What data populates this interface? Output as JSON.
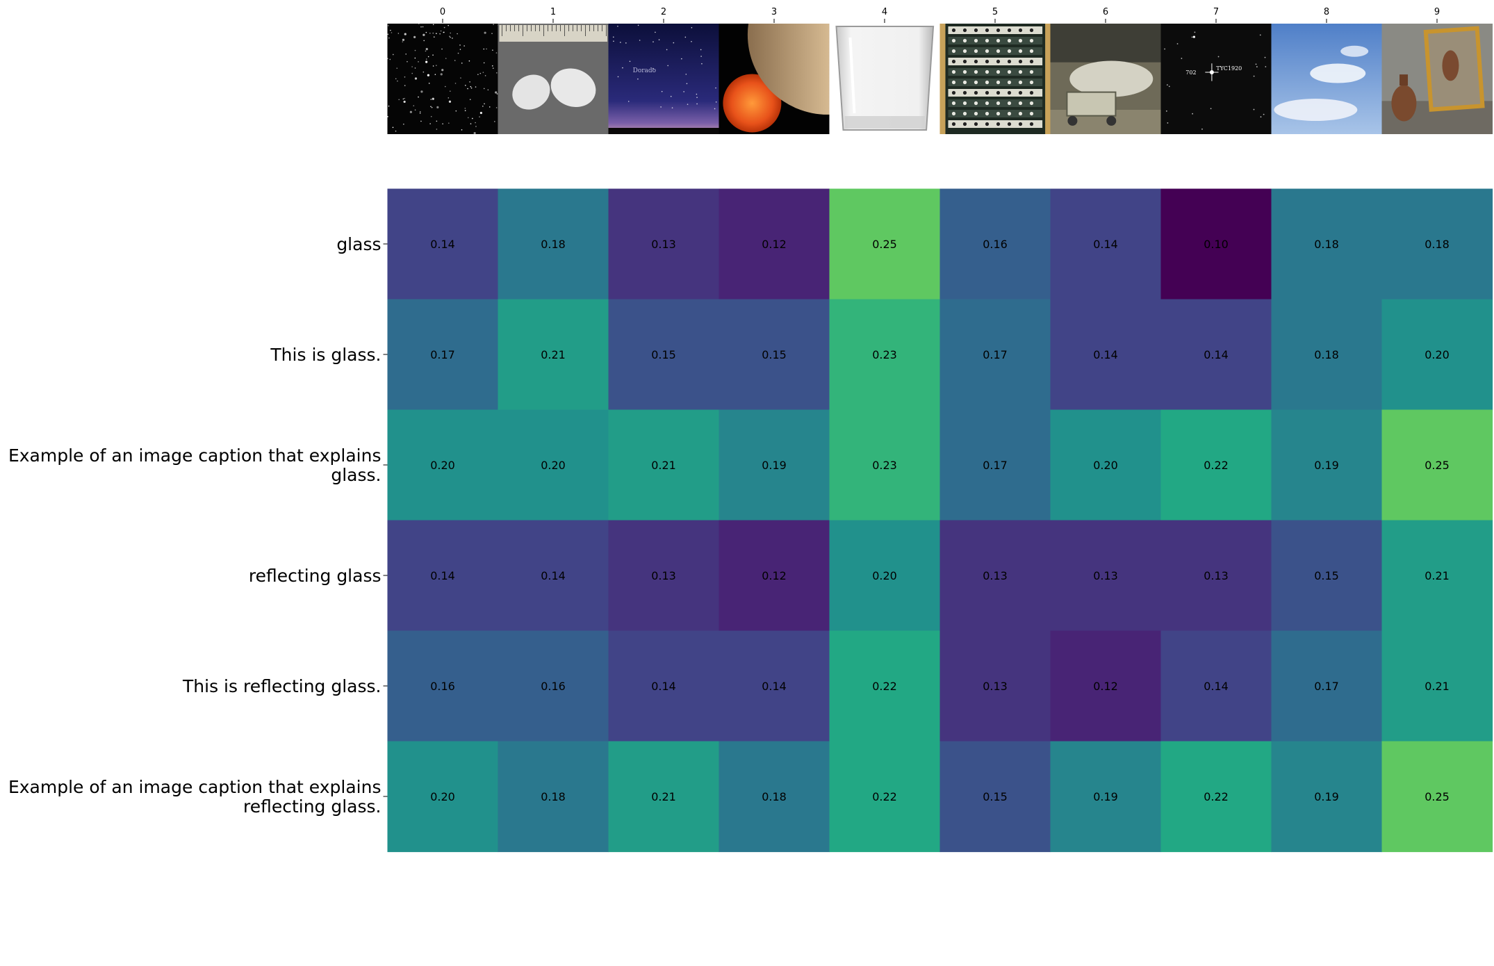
{
  "chart_data": {
    "type": "heatmap",
    "title": "",
    "xlabel": "",
    "ylabel": "",
    "x_ticks": [
      "0",
      "1",
      "2",
      "3",
      "4",
      "5",
      "6",
      "7",
      "8",
      "9"
    ],
    "y_labels": [
      [
        "glass"
      ],
      [
        "This is glass."
      ],
      [
        "Example of an image caption that explains",
        "glass."
      ],
      [
        "reflecting glass"
      ],
      [
        "This is reflecting glass."
      ],
      [
        "Example of an image caption that explains",
        "reflecting glass."
      ]
    ],
    "colormap": "viridis",
    "vmin": 0.1,
    "vmax": 0.3,
    "values": [
      [
        0.14,
        0.18,
        0.13,
        0.12,
        0.25,
        0.16,
        0.14,
        0.1,
        0.18,
        0.18
      ],
      [
        0.17,
        0.21,
        0.15,
        0.15,
        0.23,
        0.17,
        0.14,
        0.14,
        0.18,
        0.2
      ],
      [
        0.2,
        0.2,
        0.21,
        0.19,
        0.23,
        0.17,
        0.2,
        0.22,
        0.19,
        0.25
      ],
      [
        0.14,
        0.14,
        0.13,
        0.12,
        0.2,
        0.13,
        0.13,
        0.13,
        0.15,
        0.21
      ],
      [
        0.16,
        0.16,
        0.14,
        0.14,
        0.22,
        0.13,
        0.12,
        0.14,
        0.17,
        0.21
      ],
      [
        0.2,
        0.18,
        0.21,
        0.18,
        0.22,
        0.15,
        0.19,
        0.22,
        0.19,
        0.25
      ]
    ],
    "thumbnails": [
      "star-field",
      "salt-crystals-with-ruler",
      "night-sky-dorado",
      "sun-and-planet",
      "empty-drinking-glass",
      "electronic-equipment-rack",
      "bomb-on-cart",
      "star-chart-tyc",
      "blue-sky-with-clouds",
      "mirror-and-vase"
    ],
    "thumbnail_texts": {
      "thumb_2": "Dorado",
      "thumb_7_left": "702",
      "thumb_7_right": "TYC1920"
    }
  }
}
